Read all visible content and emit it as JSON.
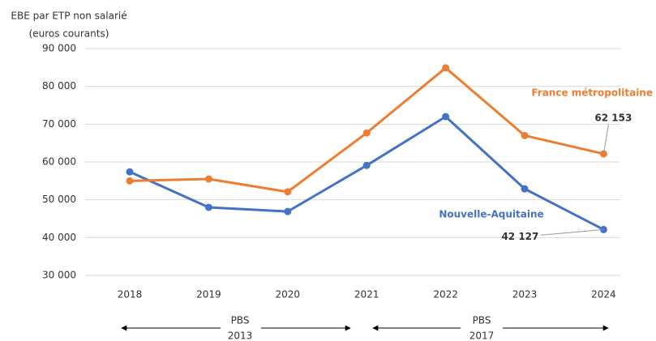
{
  "chart_data": {
    "type": "line",
    "y_label": [
      "EBE par ETP non salarié",
      "(euros courants)"
    ],
    "categories": [
      "2018",
      "2019",
      "2020",
      "2021",
      "2022",
      "2023",
      "2024"
    ],
    "series": [
      {
        "name": "Nouvelle-Aquitaine",
        "color": "#4472c4",
        "values": [
          57400,
          48000,
          46900,
          59100,
          72000,
          52900,
          42127
        ],
        "value_labels": [
          null,
          null,
          null,
          null,
          null,
          null,
          "42 127"
        ]
      },
      {
        "name": "France métropolitaine",
        "color": "#ed7d31",
        "values": [
          55000,
          55500,
          52100,
          67700,
          84900,
          67000,
          62153
        ],
        "value_labels": [
          null,
          null,
          null,
          null,
          null,
          null,
          "62 153"
        ]
      }
    ],
    "ylim": [
      30000,
      90000
    ],
    "yticks": [
      {
        "value": 30000,
        "label": "30 000"
      },
      {
        "value": 40000,
        "label": "40 000"
      },
      {
        "value": 50000,
        "label": "50 000"
      },
      {
        "value": 60000,
        "label": "60 000"
      },
      {
        "value": 70000,
        "label": "70 000"
      },
      {
        "value": 80000,
        "label": "80 000"
      },
      {
        "value": 90000,
        "label": "90 000"
      }
    ],
    "grid": true,
    "period_labels": [
      [
        "PBS",
        "2013"
      ],
      [
        "PBS",
        "2017"
      ]
    ]
  }
}
